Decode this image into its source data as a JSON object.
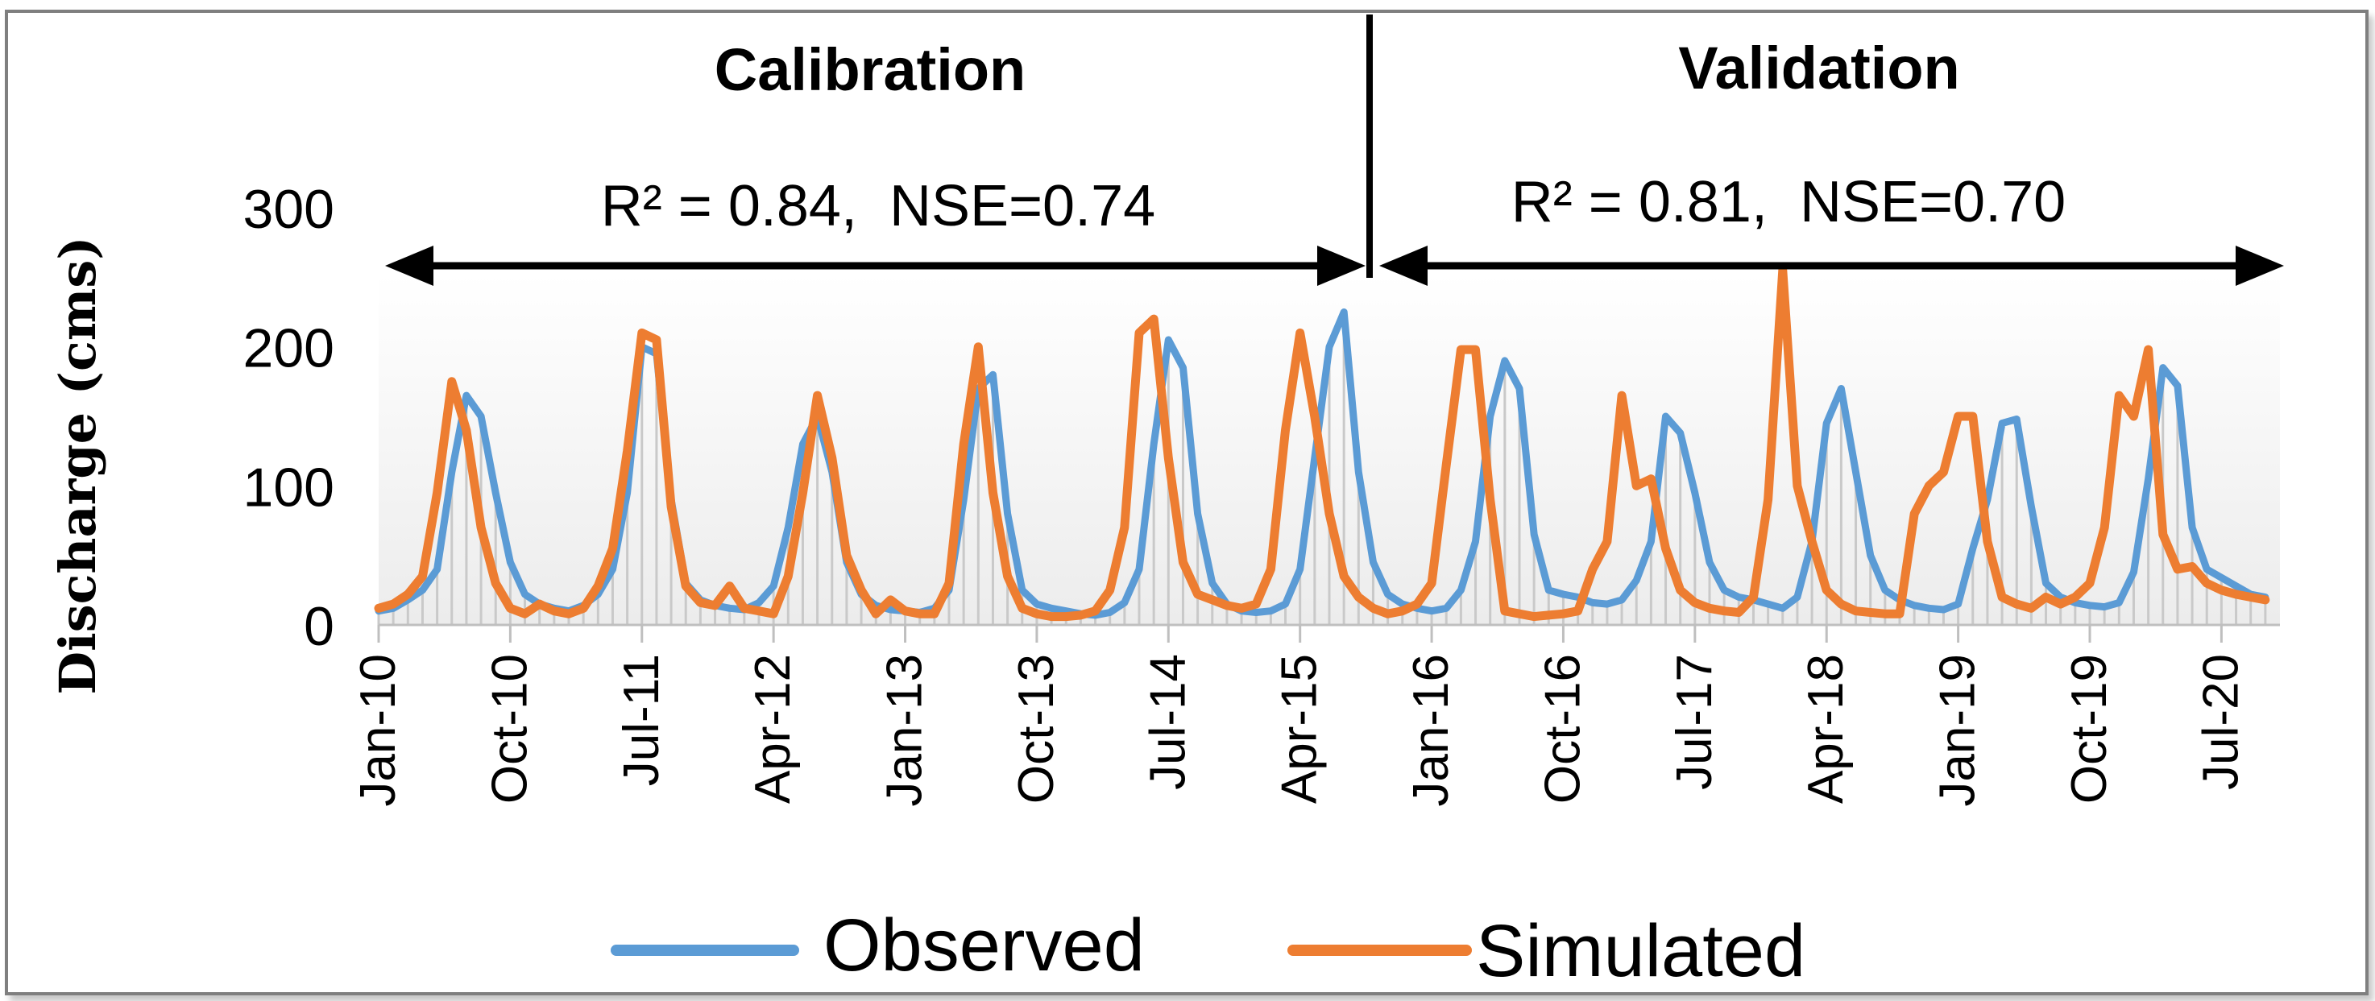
{
  "chart_data": {
    "type": "line",
    "title": "",
    "xlabel": "",
    "ylabel": "Discharge (cms)",
    "ylim": [
      0,
      300
    ],
    "y_ticks": [
      "0",
      "100",
      "200",
      "300"
    ],
    "x_tick_labels": [
      "Jan-10",
      "Oct-10",
      "Jul-11",
      "Apr-12",
      "Jan-13",
      "Oct-13",
      "Jul-14",
      "Apr-15",
      "Jan-16",
      "Oct-16",
      "Jul-17",
      "Apr-18",
      "Jan-19",
      "Oct-19",
      "Jul-20"
    ],
    "x_start": "Jan-10",
    "x_months": 130,
    "periods": [
      {
        "label": "Calibration",
        "stats": "R² = 0.84,  NSE=0.74",
        "start_month": 0,
        "end_month": 67
      },
      {
        "label": "Validation",
        "stats": "R² = 0.81,  NSE=0.70",
        "start_month": 67,
        "end_month": 130
      }
    ],
    "series": [
      {
        "name": "Observed",
        "color": "#5b9bd5",
        "values": [
          10,
          12,
          18,
          25,
          40,
          110,
          165,
          150,
          95,
          45,
          22,
          15,
          12,
          10,
          14,
          22,
          40,
          95,
          200,
          195,
          90,
          30,
          18,
          14,
          12,
          11,
          16,
          28,
          70,
          130,
          150,
          110,
          45,
          22,
          14,
          11,
          10,
          9,
          12,
          25,
          90,
          170,
          180,
          80,
          25,
          15,
          12,
          10,
          8,
          7,
          9,
          16,
          40,
          130,
          205,
          185,
          80,
          30,
          15,
          10,
          9,
          10,
          15,
          40,
          120,
          200,
          225,
          110,
          45,
          22,
          15,
          12,
          10,
          12,
          25,
          60,
          150,
          190,
          170,
          65,
          25,
          22,
          20,
          16,
          15,
          18,
          32,
          60,
          150,
          138,
          95,
          45,
          25,
          20,
          18,
          15,
          12,
          20,
          60,
          145,
          170,
          110,
          50,
          25,
          18,
          14,
          12,
          11,
          15,
          55,
          90,
          145,
          148,
          85,
          30,
          20,
          16,
          14,
          13,
          16,
          38,
          105,
          185,
          172,
          70,
          40,
          34,
          28,
          22,
          20
        ]
      },
      {
        "name": "Simulated",
        "color": "#ed7d31",
        "values": [
          12,
          15,
          22,
          35,
          95,
          175,
          140,
          70,
          30,
          12,
          8,
          15,
          10,
          8,
          12,
          28,
          55,
          125,
          210,
          205,
          85,
          28,
          16,
          14,
          28,
          12,
          10,
          8,
          35,
          95,
          165,
          120,
          50,
          25,
          8,
          18,
          10,
          8,
          8,
          30,
          130,
          200,
          95,
          35,
          12,
          8,
          6,
          6,
          7,
          10,
          25,
          70,
          210,
          220,
          120,
          45,
          22,
          18,
          14,
          12,
          15,
          40,
          140,
          210,
          150,
          80,
          35,
          20,
          12,
          8,
          10,
          15,
          30,
          115,
          198,
          198,
          90,
          10,
          8,
          6,
          7,
          8,
          10,
          40,
          60,
          165,
          100,
          105,
          55,
          25,
          16,
          12,
          10,
          9,
          20,
          90,
          255,
          100,
          60,
          25,
          15,
          10,
          9,
          8,
          8,
          80,
          100,
          110,
          150,
          150,
          60,
          20,
          15,
          12,
          20,
          15,
          20,
          30,
          70,
          165,
          150,
          198,
          65,
          40,
          42,
          30,
          25,
          22,
          20,
          18
        ]
      }
    ],
    "legend": [
      {
        "label": "Observed",
        "color": "#5b9bd5"
      },
      {
        "label": "Simulated",
        "color": "#ed7d31"
      }
    ],
    "legend_position": "bottom"
  }
}
